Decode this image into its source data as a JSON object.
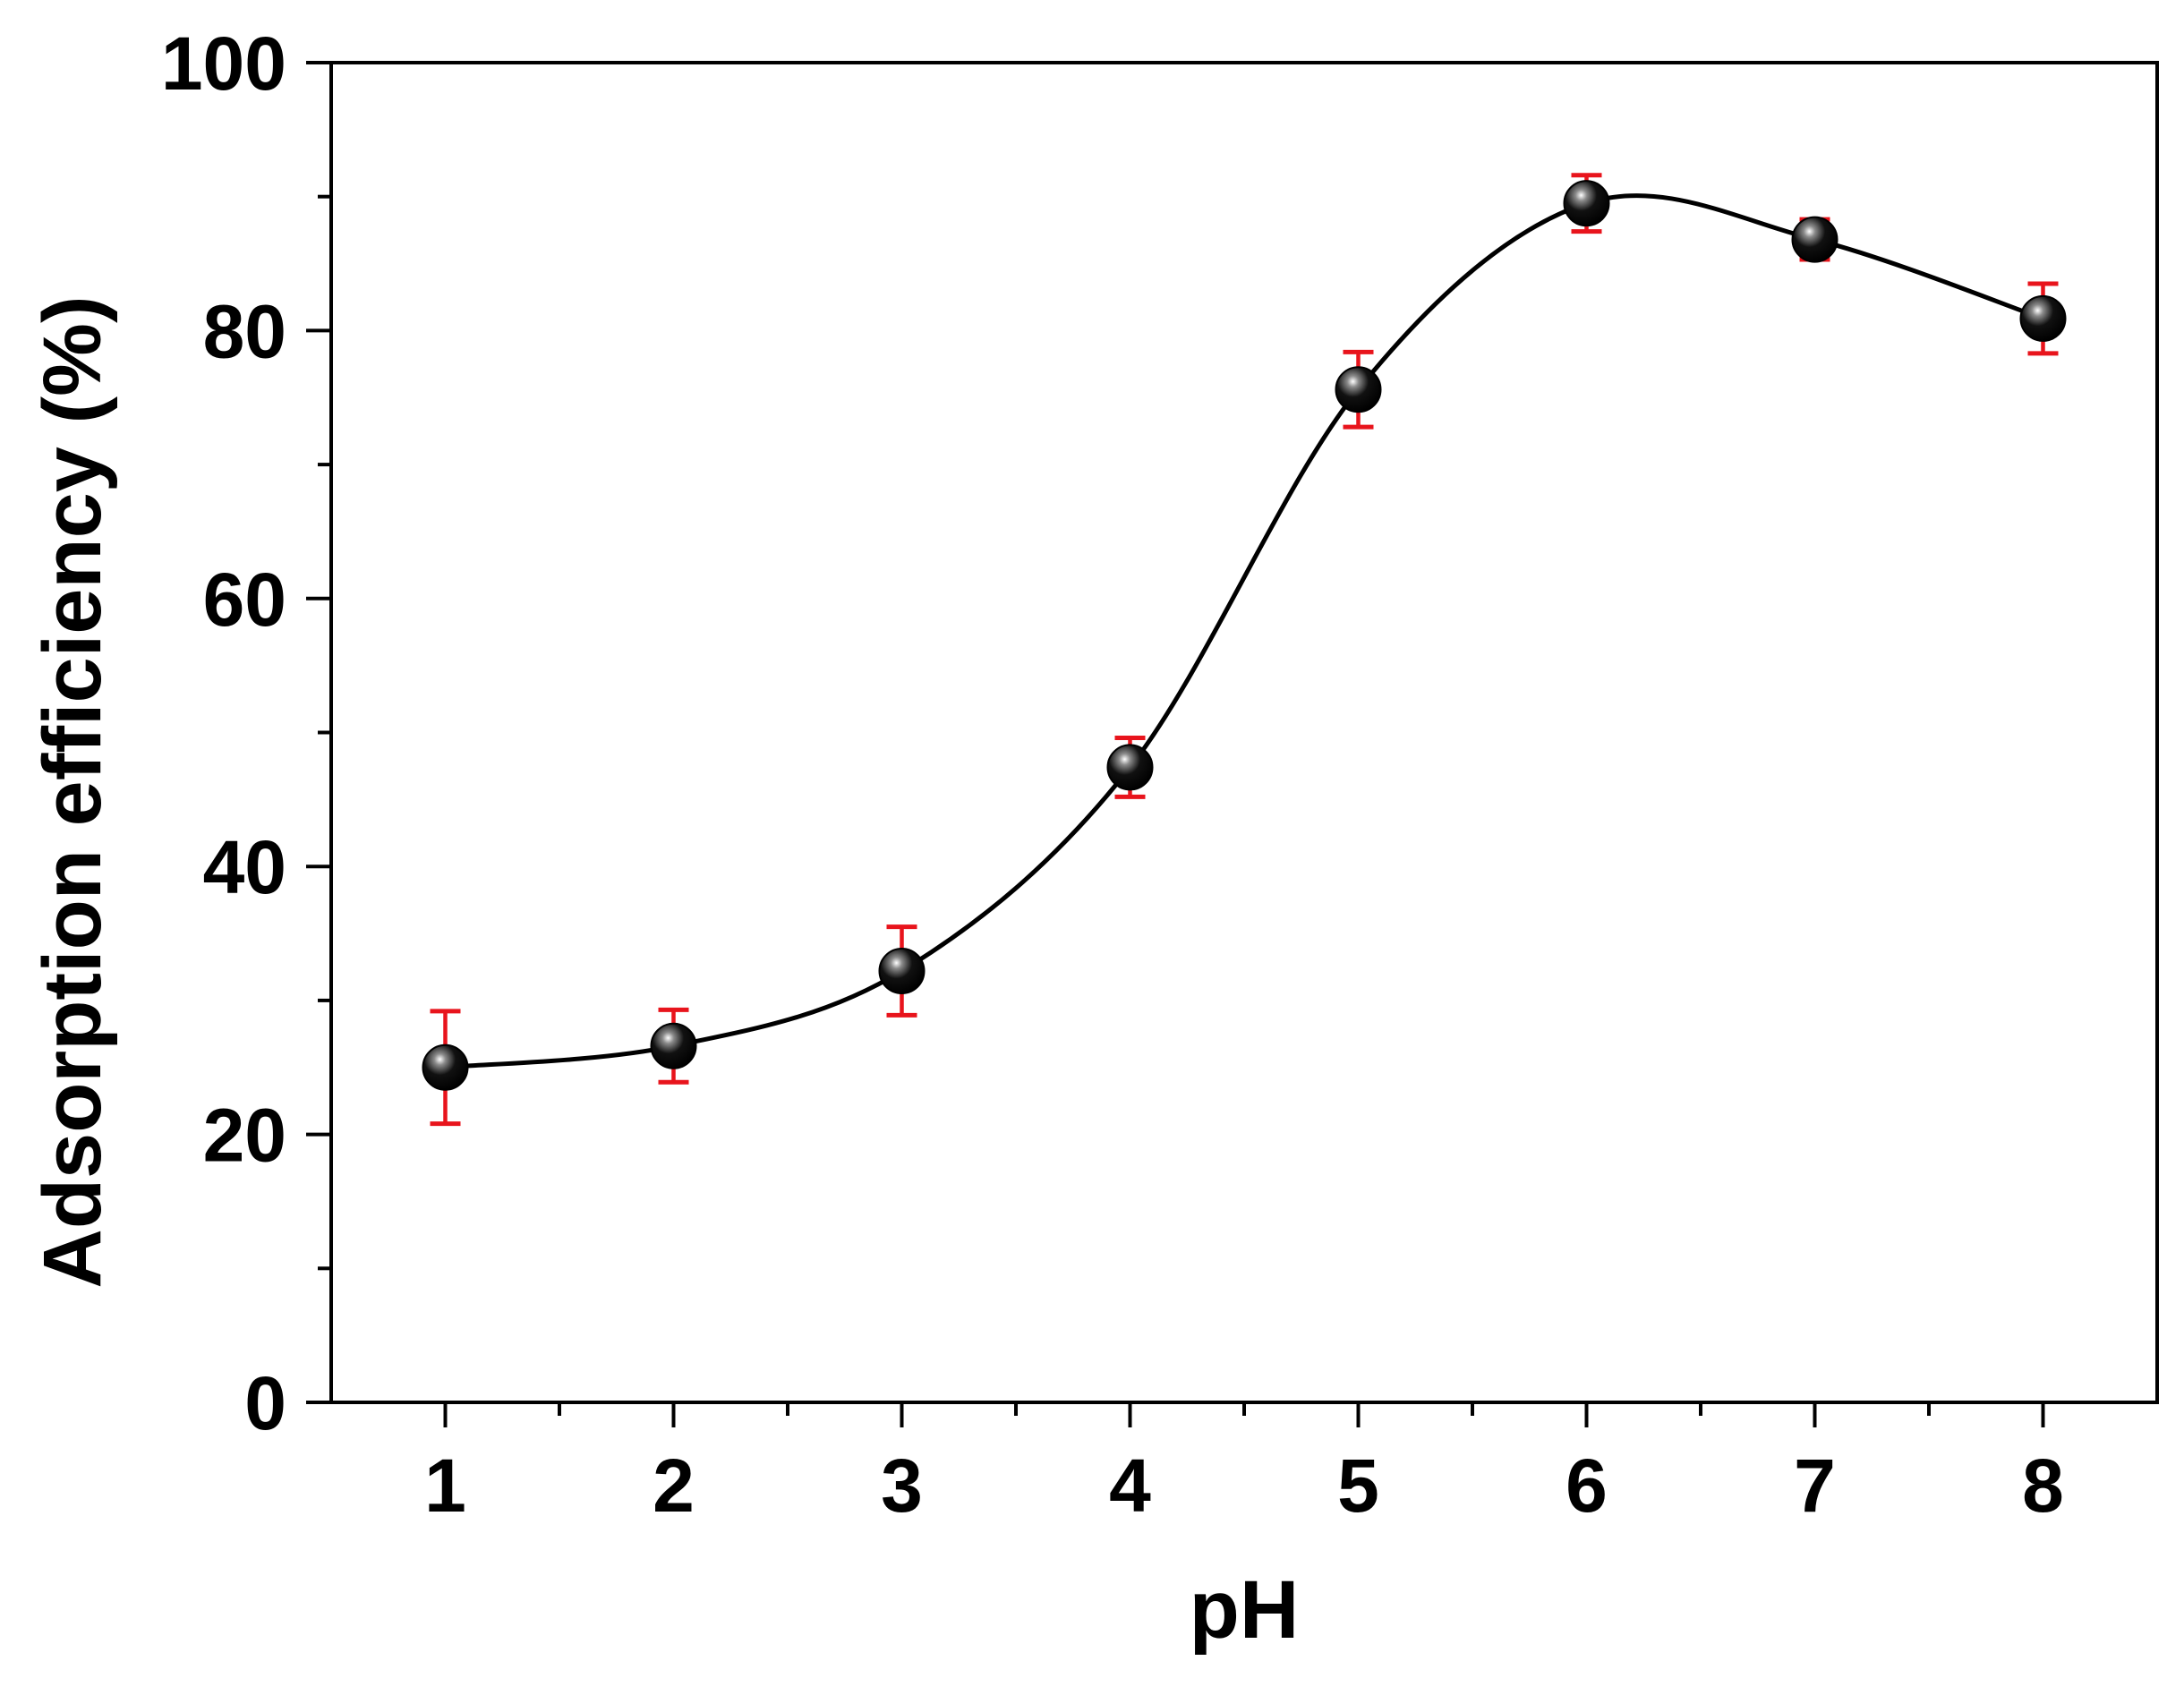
{
  "chart_data": {
    "type": "scatter",
    "title": "",
    "xlabel": "pH",
    "ylabel": "Adsorption efficiency (%)",
    "xlim": [
      0.5,
      8.5
    ],
    "ylim": [
      0,
      100
    ],
    "x_ticks": [
      "1",
      "2",
      "3",
      "4",
      "5",
      "6",
      "7",
      "8"
    ],
    "y_ticks": [
      "0",
      "20",
      "40",
      "60",
      "80",
      "100"
    ],
    "grid": false,
    "legend": "none",
    "smooth_line": true,
    "series": [
      {
        "x": [
          1,
          2,
          3,
          4,
          5,
          6,
          7,
          8
        ],
        "y": [
          25.0,
          26.6,
          32.2,
          47.4,
          75.6,
          89.5,
          86.8,
          80.9
        ],
        "error": [
          4.2,
          2.7,
          3.3,
          2.2,
          2.8,
          2.1,
          1.5,
          2.6
        ]
      }
    ],
    "colors": {
      "marker": "#000000",
      "line": "#000000",
      "error_bar": "#e8141c",
      "axis": "#000000"
    }
  }
}
